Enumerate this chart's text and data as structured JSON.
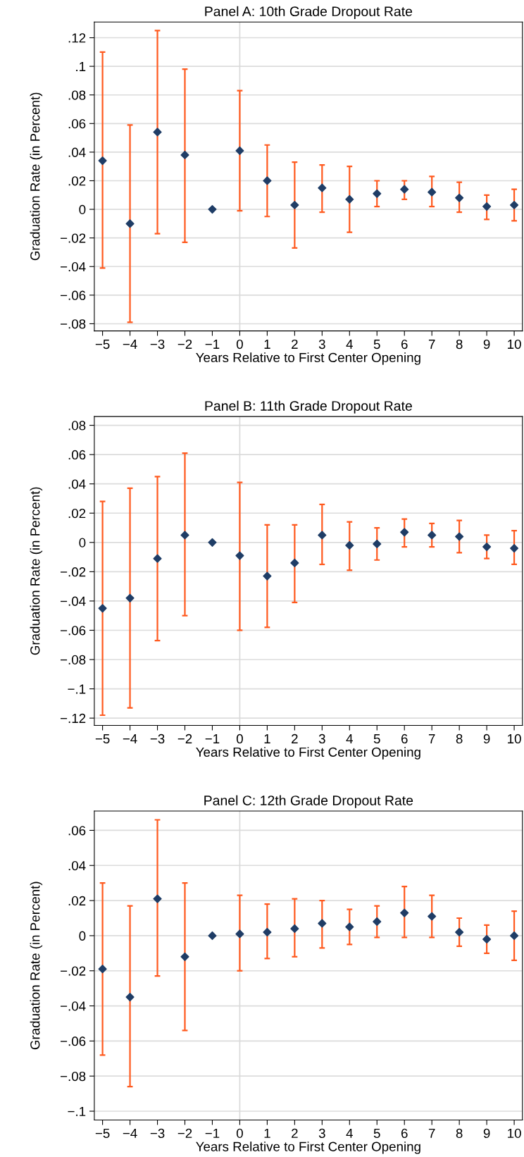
{
  "chart_data": [
    {
      "type": "scatter",
      "title": "Panel A: 10th Grade Dropout Rate",
      "xlabel": "Years Relative to First Center Opening",
      "ylabel": "Graduation Rate (in Percent)",
      "x": [
        -5,
        -4,
        -3,
        -2,
        -1,
        0,
        1,
        2,
        3,
        4,
        5,
        6,
        7,
        8,
        9,
        10
      ],
      "series": [
        {
          "color": "#1f3d66",
          "values": [
            0.034,
            -0.01,
            0.054,
            0.038,
            0,
            0.041,
            0.02,
            0.003,
            0.015,
            0.007,
            0.011,
            0.014,
            0.012,
            0.008,
            0.002,
            0.003
          ],
          "errors": [
            [
              -0.041,
              0.11
            ],
            [
              -0.079,
              0.059
            ],
            [
              -0.017,
              0.125
            ],
            [
              -0.023,
              0.098
            ],
            [
              0,
              0
            ],
            [
              -0.001,
              0.083
            ],
            [
              -0.005,
              0.045
            ],
            [
              -0.027,
              0.033
            ],
            [
              -0.002,
              0.031
            ],
            [
              -0.016,
              0.03
            ],
            [
              0.002,
              0.02
            ],
            [
              0.007,
              0.02
            ],
            [
              0.002,
              0.023
            ],
            [
              -0.002,
              0.019
            ],
            [
              -0.007,
              0.01
            ],
            [
              -0.008,
              0.014
            ]
          ]
        }
      ],
      "marker": "diamond",
      "grid": "y",
      "xlim": [
        -5.3,
        10.3
      ],
      "ylim": [
        -0.085,
        0.131
      ],
      "xticks": [
        {
          "value": -5,
          "label": "−5"
        },
        {
          "value": -4,
          "label": "−4"
        },
        {
          "value": -3,
          "label": "−3"
        },
        {
          "value": -2,
          "label": "−2"
        },
        {
          "value": -1,
          "label": "−1"
        },
        0,
        1,
        2,
        3,
        4,
        5,
        6,
        7,
        8,
        9,
        10
      ],
      "yticks": [
        {
          "value": -0.08,
          "label": "−.08"
        },
        {
          "value": -0.06,
          "label": "−.06"
        },
        {
          "value": -0.04,
          "label": "−.04"
        },
        {
          "value": -0.02,
          "label": "−.02"
        },
        0,
        {
          "value": 0.02,
          "label": ".02"
        },
        {
          "value": 0.04,
          "label": ".04"
        },
        {
          "value": 0.06,
          "label": ".06"
        },
        {
          "value": 0.08,
          "label": ".08"
        },
        {
          "value": 0.1,
          "label": ".1"
        },
        {
          "value": 0.12,
          "label": ".12"
        }
      ],
      "ref_lines": [
        {
          "axis": "x",
          "value": 0,
          "color": "#d9d9d9"
        }
      ]
    },
    {
      "type": "scatter",
      "title": "Panel B: 11th Grade Dropout Rate",
      "xlabel": "Years Relative to First Center Opening",
      "ylabel": "Graduation Rate (in Percent)",
      "x": [
        -5,
        -4,
        -3,
        -2,
        -1,
        0,
        1,
        2,
        3,
        4,
        5,
        6,
        7,
        8,
        9,
        10
      ],
      "series": [
        {
          "color": "#1f3d66",
          "values": [
            -0.045,
            -0.038,
            -0.011,
            0.005,
            0,
            -0.009,
            -0.023,
            -0.014,
            0.005,
            -0.002,
            -0.001,
            0.007,
            0.005,
            0.004,
            -0.003,
            -0.004
          ],
          "errors": [
            [
              -0.118,
              0.028
            ],
            [
              -0.113,
              0.037
            ],
            [
              -0.067,
              0.045
            ],
            [
              -0.05,
              0.061
            ],
            [
              0,
              0
            ],
            [
              -0.06,
              0.041
            ],
            [
              -0.058,
              0.012
            ],
            [
              -0.041,
              0.012
            ],
            [
              -0.015,
              0.026
            ],
            [
              -0.019,
              0.014
            ],
            [
              -0.012,
              0.01
            ],
            [
              -0.003,
              0.016
            ],
            [
              -0.003,
              0.013
            ],
            [
              -0.007,
              0.015
            ],
            [
              -0.011,
              0.005
            ],
            [
              -0.015,
              0.008
            ]
          ]
        }
      ],
      "marker": "diamond",
      "grid": "y",
      "xlim": [
        -5.3,
        10.3
      ],
      "ylim": [
        -0.125,
        0.086
      ],
      "xticks": [
        {
          "value": -5,
          "label": "−5"
        },
        {
          "value": -4,
          "label": "−4"
        },
        {
          "value": -3,
          "label": "−3"
        },
        {
          "value": -2,
          "label": "−2"
        },
        {
          "value": -1,
          "label": "−1"
        },
        0,
        1,
        2,
        3,
        4,
        5,
        6,
        7,
        8,
        9,
        10
      ],
      "yticks": [
        {
          "value": -0.12,
          "label": "−.12"
        },
        {
          "value": -0.1,
          "label": "−.1"
        },
        {
          "value": -0.08,
          "label": "−.08"
        },
        {
          "value": -0.06,
          "label": "−.06"
        },
        {
          "value": -0.04,
          "label": "−.04"
        },
        {
          "value": -0.02,
          "label": "−.02"
        },
        0,
        {
          "value": 0.02,
          "label": ".02"
        },
        {
          "value": 0.04,
          "label": ".04"
        },
        {
          "value": 0.06,
          "label": ".06"
        },
        {
          "value": 0.08,
          "label": ".08"
        }
      ],
      "ref_lines": [
        {
          "axis": "x",
          "value": 0,
          "color": "#d9d9d9"
        }
      ]
    },
    {
      "type": "scatter",
      "title": "Panel C: 12th Grade Dropout Rate",
      "xlabel": "Years Relative to First Center Opening",
      "ylabel": "Graduation Rate (in Percent)",
      "x": [
        -5,
        -4,
        -3,
        -2,
        -1,
        0,
        1,
        2,
        3,
        4,
        5,
        6,
        7,
        8,
        9,
        10
      ],
      "series": [
        {
          "color": "#1f3d66",
          "values": [
            -0.019,
            -0.035,
            0.021,
            -0.012,
            0,
            0.001,
            0.002,
            0.004,
            0.007,
            0.005,
            0.008,
            0.013,
            0.011,
            0.002,
            -0.002,
            0
          ],
          "errors": [
            [
              -0.068,
              0.03
            ],
            [
              -0.086,
              0.017
            ],
            [
              -0.023,
              0.066
            ],
            [
              -0.054,
              0.03
            ],
            [
              0,
              0
            ],
            [
              -0.02,
              0.023
            ],
            [
              -0.013,
              0.018
            ],
            [
              -0.012,
              0.021
            ],
            [
              -0.007,
              0.02
            ],
            [
              -0.005,
              0.015
            ],
            [
              -0.001,
              0.017
            ],
            [
              -0.001,
              0.028
            ],
            [
              -0.001,
              0.023
            ],
            [
              -0.006,
              0.01
            ],
            [
              -0.01,
              0.006
            ],
            [
              -0.014,
              0.014
            ]
          ]
        }
      ],
      "marker": "diamond",
      "grid": "y",
      "xlim": [
        -5.3,
        10.3
      ],
      "ylim": [
        -0.105,
        0.071
      ],
      "xticks": [
        {
          "value": -5,
          "label": "−5"
        },
        {
          "value": -4,
          "label": "−4"
        },
        {
          "value": -3,
          "label": "−3"
        },
        {
          "value": -2,
          "label": "−2"
        },
        {
          "value": -1,
          "label": "−1"
        },
        0,
        1,
        2,
        3,
        4,
        5,
        6,
        7,
        8,
        9,
        10
      ],
      "yticks": [
        {
          "value": -0.1,
          "label": "−.1"
        },
        {
          "value": -0.08,
          "label": "−.08"
        },
        {
          "value": -0.06,
          "label": "−.06"
        },
        {
          "value": -0.04,
          "label": "−.04"
        },
        {
          "value": -0.02,
          "label": "−.02"
        },
        0,
        {
          "value": 0.02,
          "label": ".02"
        },
        {
          "value": 0.04,
          "label": ".04"
        },
        {
          "value": 0.06,
          "label": ".06"
        }
      ],
      "ref_lines": [
        {
          "axis": "x",
          "value": 0,
          "color": "#d9d9d9"
        }
      ]
    }
  ]
}
